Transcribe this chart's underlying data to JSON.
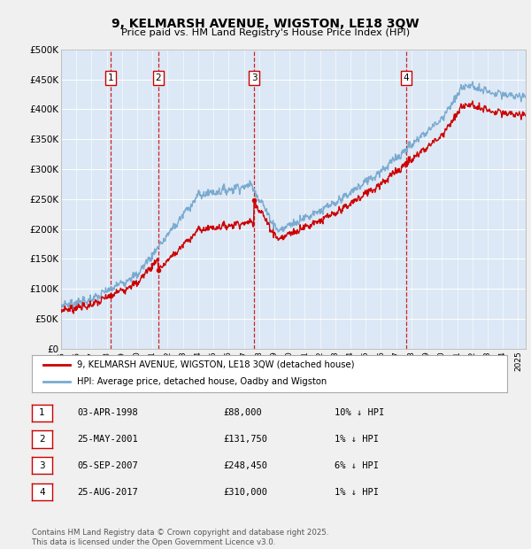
{
  "title_line1": "9, KELMARSH AVENUE, WIGSTON, LE18 3QW",
  "title_line2": "Price paid vs. HM Land Registry's House Price Index (HPI)",
  "yticks": [
    0,
    50000,
    100000,
    150000,
    200000,
    250000,
    300000,
    350000,
    400000,
    450000,
    500000
  ],
  "ytick_labels": [
    "£0",
    "£50K",
    "£100K",
    "£150K",
    "£200K",
    "£250K",
    "£300K",
    "£350K",
    "£400K",
    "£450K",
    "£500K"
  ],
  "fig_bg_color": "#f0f0f0",
  "chart_bg_color": "#dce8f5",
  "hpi_color": "#7aaad0",
  "price_color": "#cc0000",
  "vline_color": "#cc0000",
  "transactions": [
    {
      "label": "1",
      "date_x": 1998.25,
      "price": 88000
    },
    {
      "label": "2",
      "date_x": 2001.38,
      "price": 131750
    },
    {
      "label": "3",
      "date_x": 2007.67,
      "price": 248450
    },
    {
      "label": "4",
      "date_x": 2017.65,
      "price": 310000
    }
  ],
  "legend_line1": "9, KELMARSH AVENUE, WIGSTON, LE18 3QW (detached house)",
  "legend_line2": "HPI: Average price, detached house, Oadby and Wigston",
  "table_rows": [
    [
      "1",
      "03-APR-1998",
      "£88,000",
      "10% ↓ HPI"
    ],
    [
      "2",
      "25-MAY-2001",
      "£131,750",
      "1% ↓ HPI"
    ],
    [
      "3",
      "05-SEP-2007",
      "£248,450",
      "6% ↓ HPI"
    ],
    [
      "4",
      "25-AUG-2017",
      "£310,000",
      "1% ↓ HPI"
    ]
  ],
  "footer": "Contains HM Land Registry data © Crown copyright and database right 2025.\nThis data is licensed under the Open Government Licence v3.0.",
  "xmin": 1995.0,
  "xmax": 2025.5,
  "ymin": 0,
  "ymax": 500000
}
